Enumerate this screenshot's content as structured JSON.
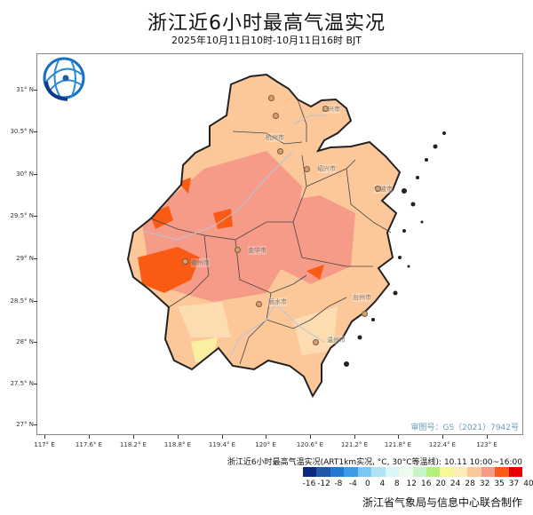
{
  "title": "浙江近6小时最高气温实况",
  "subtitle": "2025年10月11日10时-10月11日16时 BJT",
  "logo": "globe-network-logo",
  "lat_labels": [
    "31° N",
    "30.5° N",
    "30° N",
    "29.5° N",
    "29° N",
    "28.5° N",
    "28° N",
    "27.5° N",
    "27° N"
  ],
  "lon_labels": [
    "117° E",
    "117.6° E",
    "118.2° E",
    "118.8° E",
    "119.4° E",
    "120° E",
    "120.6° E",
    "121.2° E",
    "121.8° E",
    "122.4° E",
    "123° E"
  ],
  "cities": [
    "嘉兴市",
    "杭州市",
    "绍兴市",
    "宁波市",
    "金华市",
    "衢州市",
    "丽水市",
    "台州市",
    "温州市"
  ],
  "approval": "审图号：GS（2021）7942号",
  "legend": {
    "title": "浙江近6小时最高气温实况(ART1km实况, °C, 30°C等温线): 10.11 10:00~16:00",
    "colors": [
      "#0a2a82",
      "#1e5aa8",
      "#2378d2",
      "#3c9be6",
      "#7cc8f4",
      "#aee2f4",
      "#d8f6fa",
      "#eefbee",
      "#c8f5c8",
      "#b4f07c",
      "#f8f896",
      "#fcecb8",
      "#fcc89a",
      "#f59b88",
      "#fa5a14",
      "#e60000"
    ],
    "ticks": [
      "-16",
      "-12",
      "-8",
      "-4",
      "0",
      "4",
      "8",
      "12",
      "16",
      "20",
      "24",
      "28",
      "32",
      "35",
      "37",
      "40"
    ]
  },
  "credit": "浙江省气象局与信息中心联合制作"
}
